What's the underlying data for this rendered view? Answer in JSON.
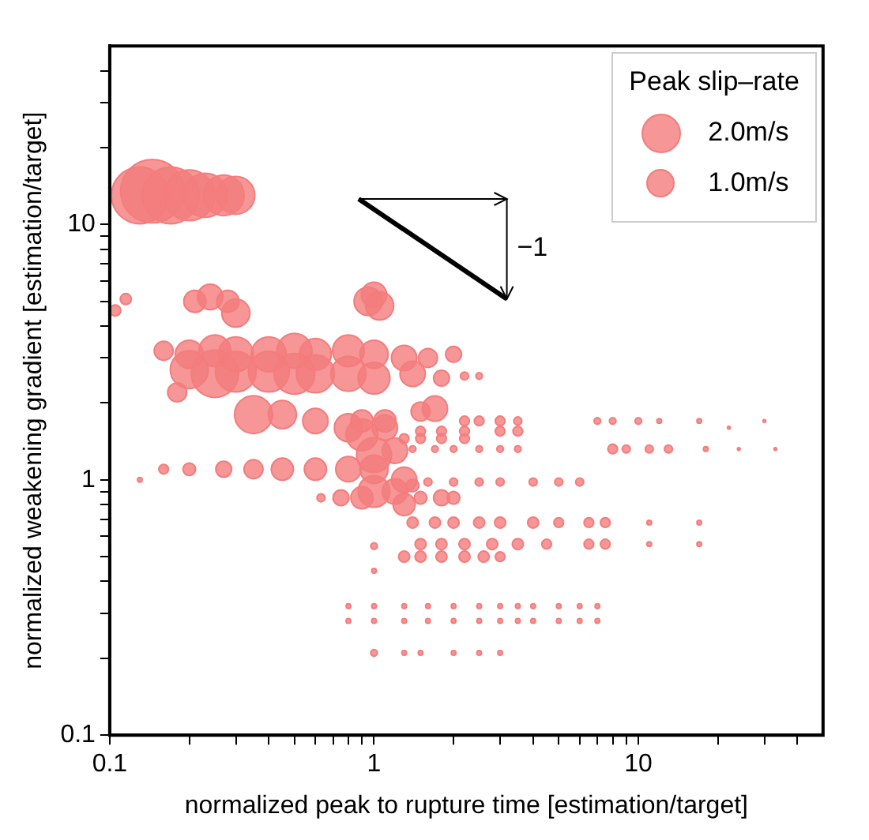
{
  "chart_data": {
    "type": "bubble",
    "xlabel": "normalized peak to rupture time [estimation/target]",
    "ylabel": "normalized weakening gradient [estimation/target]",
    "legend_title": "Peak slip–rate",
    "size_legend": [
      {
        "value": 2,
        "label": "2.0m/s"
      },
      {
        "value": 1,
        "label": "1.0m/s"
      }
    ],
    "log": "xy",
    "color": "#f47c7c",
    "xlim": [
      0.1,
      50
    ],
    "ylim": [
      0.1,
      50
    ],
    "xticks": [
      0.1,
      {
        "value": 0.2,
        "label": null
      },
      {
        "value": 0.3,
        "label": null
      },
      {
        "value": 0.4,
        "label": null
      },
      {
        "value": 0.5,
        "label": null
      },
      {
        "value": 0.6,
        "label": null
      },
      {
        "value": 0.7,
        "label": null
      },
      {
        "value": 0.8,
        "label": null
      },
      {
        "value": 0.9,
        "label": null
      },
      1,
      {
        "value": 2,
        "label": null
      },
      {
        "value": 3,
        "label": null
      },
      {
        "value": 4,
        "label": null
      },
      {
        "value": 5,
        "label": null
      },
      {
        "value": 6,
        "label": null
      },
      {
        "value": 7,
        "label": null
      },
      {
        "value": 8,
        "label": null
      },
      {
        "value": 9,
        "label": null
      },
      10,
      {
        "value": 20,
        "label": null
      },
      {
        "value": 30,
        "label": null
      },
      {
        "value": 40,
        "label": null
      }
    ],
    "yticks": [
      0.1,
      {
        "value": 0.2,
        "label": null
      },
      {
        "value": 0.3,
        "label": null
      },
      {
        "value": 0.4,
        "label": null
      },
      {
        "value": 0.5,
        "label": null
      },
      {
        "value": 0.6,
        "label": null
      },
      {
        "value": 0.7,
        "label": null
      },
      {
        "value": 0.8,
        "label": null
      },
      {
        "value": 0.9,
        "label": null
      },
      1,
      {
        "value": 2,
        "label": null
      },
      {
        "value": 3,
        "label": null
      },
      {
        "value": 4,
        "label": null
      },
      {
        "value": 5,
        "label": null
      },
      {
        "value": 6,
        "label": null
      },
      {
        "value": 7,
        "label": null
      },
      {
        "value": 8,
        "label": null
      },
      {
        "value": 9,
        "label": null
      },
      10,
      {
        "value": 20,
        "label": null
      },
      {
        "value": 30,
        "label": null
      },
      {
        "value": 40,
        "label": null
      }
    ],
    "annotations": [
      "−1"
    ],
    "x": [
      0.13,
      0.145,
      0.17,
      0.2,
      0.23,
      0.27,
      0.3,
      0.105,
      0.115,
      0.21,
      0.24,
      0.28,
      0.3,
      0.95,
      1,
      1.05,
      0.16,
      0.2,
      0.25,
      0.3,
      0.4,
      0.5,
      0.6,
      0.8,
      1,
      1.3,
      1.6,
      2,
      0.2,
      0.25,
      0.3,
      0.4,
      0.5,
      0.6,
      0.8,
      1,
      1.4,
      1.8,
      2.2,
      2.5,
      0.18,
      0.35,
      0.45,
      0.6,
      0.8,
      0.9,
      1.1,
      1.5,
      1.7,
      2.2,
      2.5,
      3,
      3.5,
      7,
      8,
      10,
      12,
      17,
      22,
      30,
      1.5,
      1.8,
      2.2,
      3,
      3.5,
      1.3,
      1.5,
      1.8,
      2.2,
      1.4,
      1.7,
      2,
      2.5,
      3,
      3.5,
      8,
      9,
      11,
      13,
      18,
      24,
      33,
      0.13,
      0.16,
      0.2,
      0.27,
      0.35,
      0.45,
      0.6,
      0.8,
      1,
      1,
      1.2,
      0.9,
      1.1,
      1,
      1.2,
      1.4,
      1.3,
      1.3,
      1.6,
      2,
      2.5,
      3,
      4,
      5,
      6,
      0.63,
      0.75,
      0.9,
      1.5,
      1.8,
      2,
      1.4,
      1.7,
      2,
      2.5,
      3,
      4,
      5,
      6.5,
      7.5,
      11,
      17,
      1,
      1.5,
      1.8,
      2.2,
      2.8,
      3.5,
      4.5,
      6.5,
      7.5,
      11,
      17,
      1.3,
      1.5,
      1.8,
      2.2,
      2.6,
      3,
      1,
      0.8,
      1,
      1.3,
      1.6,
      2,
      2.5,
      3,
      3.5,
      4,
      5,
      6,
      7,
      0.8,
      1,
      1.3,
      1.6,
      2,
      2.5,
      3,
      3.5,
      4,
      5,
      6,
      7,
      1,
      1.3,
      1.5,
      2,
      2.5,
      3
    ],
    "values": [
      13,
      13.5,
      13,
      13,
      13,
      13,
      13,
      4.6,
      5.1,
      5,
      5.2,
      5,
      4.5,
      5,
      5.3,
      4.8,
      3.2,
      3.1,
      3.2,
      3.1,
      3.1,
      3.2,
      3.1,
      3.2,
      3.1,
      3,
      3,
      3.1,
      2.7,
      2.6,
      2.65,
      2.65,
      2.6,
      2.6,
      2.6,
      2.5,
      2.6,
      2.5,
      2.55,
      2.55,
      2.2,
      1.8,
      1.8,
      1.7,
      1.6,
      1.7,
      1.7,
      1.85,
      1.9,
      1.7,
      1.7,
      1.7,
      1.7,
      1.7,
      1.7,
      1.7,
      1.7,
      1.7,
      1.6,
      1.7,
      1.55,
      1.55,
      1.55,
      1.55,
      1.55,
      1.45,
      1.45,
      1.45,
      1.45,
      1.32,
      1.32,
      1.32,
      1.32,
      1.32,
      1.32,
      1.32,
      1.32,
      1.32,
      1.32,
      1.32,
      1.32,
      1.32,
      1,
      1.1,
      1.1,
      1.1,
      1.1,
      1.1,
      1.1,
      1.1,
      1.1,
      1.25,
      1.3,
      1.5,
      1.6,
      0.9,
      0.9,
      0.95,
      1,
      0.8,
      0.98,
      0.98,
      0.98,
      0.98,
      0.98,
      0.98,
      0.98,
      0.85,
      0.85,
      0.85,
      0.85,
      0.85,
      0.85,
      0.68,
      0.68,
      0.68,
      0.68,
      0.68,
      0.68,
      0.68,
      0.68,
      0.68,
      0.68,
      0.68,
      0.55,
      0.56,
      0.56,
      0.56,
      0.56,
      0.56,
      0.56,
      0.56,
      0.56,
      0.56,
      0.56,
      0.5,
      0.5,
      0.5,
      0.5,
      0.5,
      0.5,
      0.44,
      0.32,
      0.32,
      0.32,
      0.32,
      0.32,
      0.32,
      0.32,
      0.32,
      0.32,
      0.32,
      0.32,
      0.32,
      0.28,
      0.28,
      0.28,
      0.28,
      0.28,
      0.28,
      0.28,
      0.28,
      0.28,
      0.28,
      0.28,
      0.28,
      0.21,
      0.21,
      0.21,
      0.21,
      0.21,
      0.21
    ],
    "sizes": [
      4.5,
      5.6,
      4.5,
      3.6,
      2.7,
      2.3,
      2.0,
      0.17,
      0.17,
      0.68,
      0.89,
      0.68,
      1.1,
      1.1,
      0.89,
      1.1,
      0.5,
      1.1,
      1.4,
      1.7,
      1.7,
      1.7,
      1.4,
      1.4,
      1.1,
      0.89,
      0.5,
      0.35,
      2,
      3.1,
      2.3,
      2.3,
      2.3,
      2,
      1.7,
      1.4,
      0.89,
      0.35,
      0.09,
      0.06,
      0.5,
      2,
      1.1,
      0.89,
      1.1,
      0.68,
      0.68,
      0.5,
      0.89,
      0.13,
      0.13,
      0.13,
      0.09,
      0.06,
      0.06,
      0.06,
      0.03,
      0.03,
      0.01,
      0.01,
      0.13,
      0.13,
      0.13,
      0.13,
      0.13,
      0.13,
      0.13,
      0.13,
      0.13,
      0.06,
      0.06,
      0.06,
      0.06,
      0.06,
      0.06,
      0.13,
      0.09,
      0.09,
      0.09,
      0.03,
      0.01,
      0.01,
      0.03,
      0.13,
      0.22,
      0.35,
      0.5,
      0.68,
      0.68,
      0.89,
      1.1,
      1.7,
      0.89,
      1.4,
      0.89,
      1.4,
      0.89,
      0.22,
      0.89,
      0.68,
      0.09,
      0.09,
      0.09,
      0.09,
      0.09,
      0.09,
      0.09,
      0.09,
      0.35,
      0.68,
      0.22,
      0.35,
      0.22,
      0.17,
      0.17,
      0.17,
      0.17,
      0.17,
      0.17,
      0.13,
      0.13,
      0.13,
      0.03,
      0.03,
      0.06,
      0.17,
      0.17,
      0.17,
      0.17,
      0.17,
      0.13,
      0.13,
      0.13,
      0.03,
      0.03,
      0.17,
      0.17,
      0.17,
      0.17,
      0.17,
      0.13,
      0.03,
      0.03,
      0.03,
      0.03,
      0.03,
      0.03,
      0.03,
      0.03,
      0.03,
      0.03,
      0.03,
      0.03,
      0.03,
      0.03,
      0.03,
      0.03,
      0.03,
      0.03,
      0.03,
      0.03,
      0.03,
      0.03,
      0.03,
      0.03,
      0.03,
      0.06,
      0.03,
      0.03,
      0.03,
      0.03,
      0.03
    ]
  }
}
